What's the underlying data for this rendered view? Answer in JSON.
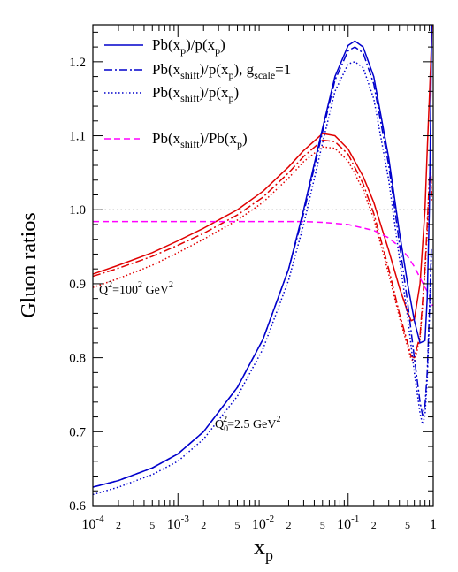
{
  "chart_data": {
    "type": "line",
    "xlabel": "x",
    "xlabel_sub": "p",
    "ylabel": "Gluon ratios",
    "x_scale": "log",
    "xlim": [
      0.0001,
      1
    ],
    "ylim": [
      0.6,
      1.25
    ],
    "y_ticks": [
      "0.6",
      "0.7",
      "0.8",
      "0.9",
      "1.0",
      "1.1",
      "1.2"
    ],
    "x_major_ticks": [
      {
        "base": "10",
        "exp": "-4"
      },
      {
        "base": "10",
        "exp": "-3"
      },
      {
        "base": "10",
        "exp": "-2"
      },
      {
        "base": "10",
        "exp": "-1"
      },
      {
        "base": "1",
        "exp": ""
      }
    ],
    "x_minor_labels": [
      "2",
      "5"
    ],
    "reference_line_y": 1.0,
    "colors": {
      "red": "#e00000",
      "blue": "#0000cc",
      "magenta": "#ff00ff",
      "ref": "#888888"
    },
    "legend": [
      {
        "style": "solid",
        "color": "blue",
        "main": "Pb(x",
        "sub": "p",
        "mid": ")/p(x",
        "sub2": "p",
        "tail": ")"
      },
      {
        "style": "dashdot",
        "color": "blue",
        "main": "Pb(x",
        "sub": "shift",
        "mid": ")/p(x",
        "sub2": "p",
        "tail": "), g",
        "sub3": "scale",
        "tail2": "=1"
      },
      {
        "style": "dotted",
        "color": "blue",
        "main": "Pb(x",
        "sub": "shift",
        "mid": ")/p(x",
        "sub2": "p",
        "tail": ")"
      },
      {
        "style": "dashed",
        "color": "magenta",
        "main": "Pb(x",
        "sub": "shift",
        "mid": ")/Pb(x",
        "sub2": "p",
        "tail": ")"
      }
    ],
    "annotations": [
      {
        "id": "q2-high",
        "text": "Q",
        "sup": "2",
        "rest": "=100",
        "sup2": "2",
        "rest2": " GeV",
        "sup3": "2"
      },
      {
        "id": "q2-low",
        "text": "Q",
        "sub": "0",
        "sup": "2",
        "rest": "=2.5 GeV",
        "sup3": "2"
      }
    ],
    "series": [
      {
        "group": "Q2=100^2",
        "style": "solid",
        "color": "red",
        "x": [
          0.0001,
          0.0002,
          0.0005,
          0.001,
          0.002,
          0.005,
          0.01,
          0.02,
          0.03,
          0.05,
          0.07,
          0.1,
          0.15,
          0.2,
          0.3,
          0.4,
          0.5,
          0.55,
          0.6,
          0.7,
          0.8,
          0.85,
          0.9,
          0.95,
          0.97
        ],
        "y": [
          0.913,
          0.925,
          0.942,
          0.958,
          0.975,
          1.0,
          1.025,
          1.058,
          1.08,
          1.103,
          1.1,
          1.082,
          1.045,
          1.01,
          0.945,
          0.895,
          0.862,
          0.85,
          0.852,
          0.9,
          1.0,
          1.08,
          1.15,
          1.22,
          1.25
        ]
      },
      {
        "group": "Q2=100^2",
        "style": "dashdot",
        "color": "red",
        "x": [
          0.0001,
          0.0002,
          0.0005,
          0.001,
          0.002,
          0.005,
          0.01,
          0.02,
          0.03,
          0.05,
          0.07,
          0.1,
          0.15,
          0.2,
          0.3,
          0.4,
          0.5,
          0.55,
          0.6,
          0.7,
          0.8,
          0.85,
          0.9,
          0.93,
          0.96
        ],
        "y": [
          0.91,
          0.921,
          0.937,
          0.952,
          0.968,
          0.993,
          1.017,
          1.05,
          1.072,
          1.094,
          1.092,
          1.075,
          1.035,
          0.995,
          0.92,
          0.86,
          0.82,
          0.802,
          0.8,
          0.83,
          0.92,
          0.98,
          1.04,
          1.06,
          1.02
        ]
      },
      {
        "group": "Q2=100^2",
        "style": "dotted",
        "color": "red",
        "x": [
          0.0001,
          0.0002,
          0.0005,
          0.001,
          0.002,
          0.005,
          0.01,
          0.02,
          0.03,
          0.05,
          0.07,
          0.1,
          0.15,
          0.2,
          0.3,
          0.4,
          0.5,
          0.55,
          0.6,
          0.7,
          0.8,
          0.85,
          0.9,
          0.93,
          0.96
        ],
        "y": [
          0.895,
          0.907,
          0.925,
          0.942,
          0.96,
          0.986,
          1.01,
          1.043,
          1.065,
          1.085,
          1.083,
          1.066,
          1.027,
          0.988,
          0.913,
          0.855,
          0.815,
          0.798,
          0.795,
          0.825,
          0.915,
          0.97,
          1.03,
          1.05,
          1.01
        ]
      },
      {
        "group": "Q2=100^2",
        "style": "dashed",
        "color": "magenta",
        "x": [
          0.0001,
          0.001,
          0.01,
          0.03,
          0.05,
          0.1,
          0.2,
          0.3,
          0.4,
          0.5,
          0.6,
          0.7,
          0.8,
          0.85,
          0.9,
          0.95,
          0.98
        ],
        "y": [
          0.984,
          0.984,
          0.984,
          0.984,
          0.983,
          0.98,
          0.972,
          0.962,
          0.95,
          0.937,
          0.923,
          0.908,
          0.895,
          0.89,
          0.885,
          0.875,
          0.87
        ]
      },
      {
        "group": "Q0^2=2.5",
        "style": "solid",
        "color": "blue",
        "x": [
          0.0001,
          0.0002,
          0.0005,
          0.001,
          0.002,
          0.005,
          0.01,
          0.02,
          0.03,
          0.05,
          0.07,
          0.1,
          0.12,
          0.15,
          0.2,
          0.3,
          0.4,
          0.5,
          0.6,
          0.7,
          0.8,
          0.85,
          0.9,
          0.93,
          0.96
        ],
        "y": [
          0.625,
          0.634,
          0.651,
          0.67,
          0.7,
          0.76,
          0.825,
          0.92,
          1.0,
          1.11,
          1.18,
          1.222,
          1.228,
          1.22,
          1.18,
          1.07,
          0.97,
          0.9,
          0.85,
          0.82,
          0.823,
          0.88,
          1.0,
          1.12,
          1.25
        ]
      },
      {
        "group": "Q0^2=2.5",
        "style": "dashdot",
        "color": "blue",
        "x": [
          0.0001,
          0.0002,
          0.0005,
          0.001,
          0.002,
          0.005,
          0.01,
          0.02,
          0.03,
          0.05,
          0.07,
          0.1,
          0.12,
          0.15,
          0.2,
          0.3,
          0.4,
          0.5,
          0.6,
          0.7,
          0.75,
          0.8,
          0.85,
          0.9,
          0.95
        ],
        "y": [
          0.625,
          0.634,
          0.651,
          0.67,
          0.7,
          0.76,
          0.825,
          0.92,
          0.995,
          1.105,
          1.175,
          1.215,
          1.22,
          1.212,
          1.17,
          1.06,
          0.955,
          0.875,
          0.8,
          0.74,
          0.722,
          0.735,
          0.78,
          0.86,
          0.95
        ]
      },
      {
        "group": "Q0^2=2.5",
        "style": "dotted",
        "color": "blue",
        "x": [
          0.0001,
          0.0002,
          0.0005,
          0.001,
          0.002,
          0.005,
          0.01,
          0.02,
          0.03,
          0.05,
          0.07,
          0.1,
          0.12,
          0.15,
          0.2,
          0.3,
          0.4,
          0.5,
          0.6,
          0.7,
          0.75,
          0.8,
          0.85,
          0.9,
          0.95
        ],
        "y": [
          0.615,
          0.625,
          0.642,
          0.66,
          0.69,
          0.748,
          0.812,
          0.905,
          0.98,
          1.09,
          1.16,
          1.197,
          1.2,
          1.192,
          1.15,
          1.04,
          0.935,
          0.855,
          0.78,
          0.725,
          0.71,
          0.722,
          0.77,
          0.85,
          0.94
        ]
      }
    ]
  }
}
